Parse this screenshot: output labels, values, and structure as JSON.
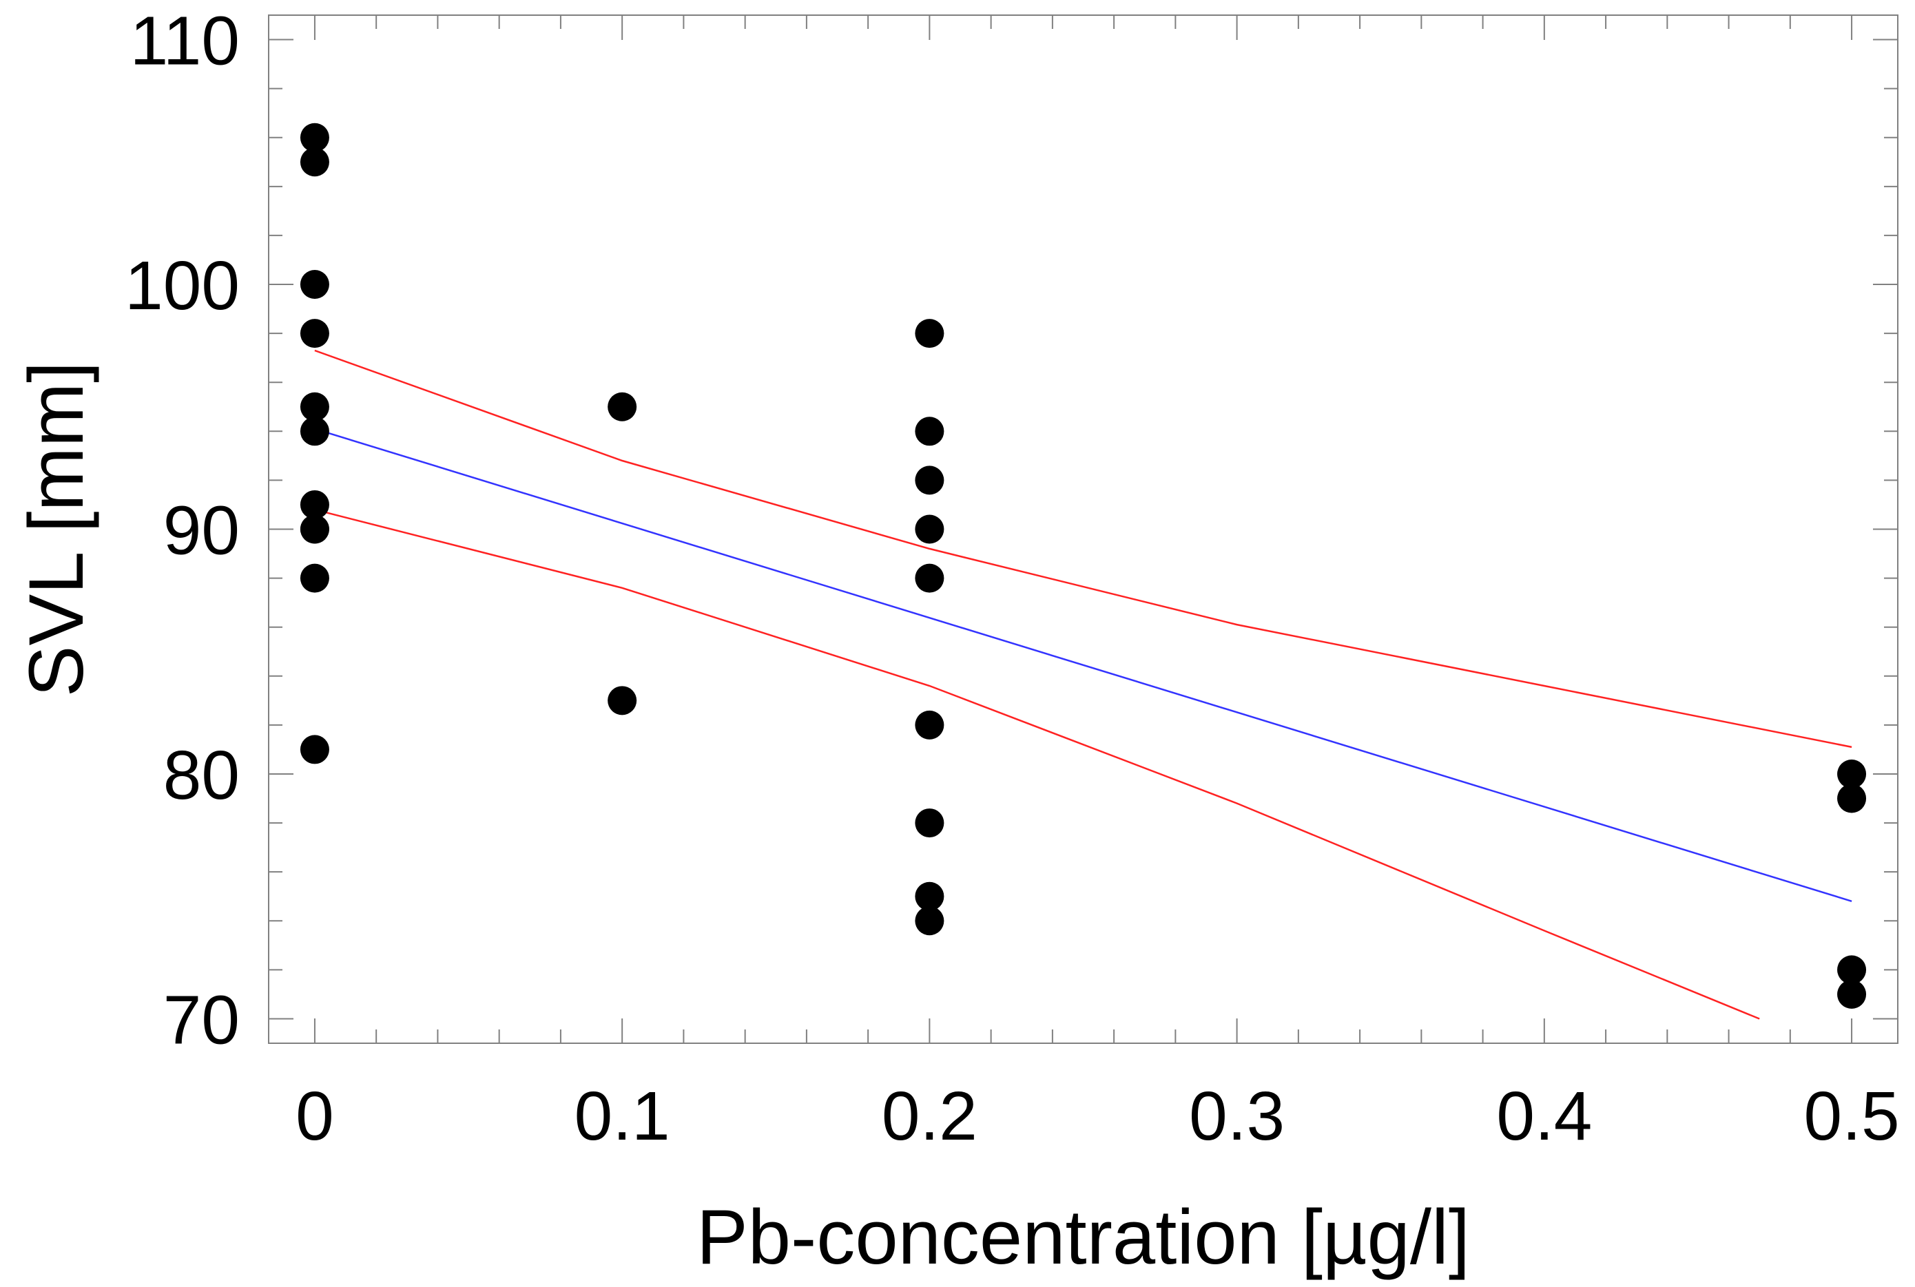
{
  "chart_data": {
    "type": "scatter",
    "title": "",
    "xlabel": "Pb-concentration [µg/l]",
    "ylabel": "SVL [mm]",
    "xlim": [
      -0.015,
      0.515
    ],
    "ylim": [
      69,
      111
    ],
    "xticks": [
      0,
      0.1,
      0.2,
      0.3,
      0.4,
      0.5
    ],
    "xtick_labels": [
      "0",
      "0.1",
      "0.2",
      "0.3",
      "0.4",
      "0.5"
    ],
    "yticks": [
      70,
      80,
      90,
      100,
      110
    ],
    "ytick_labels": [
      "70",
      "80",
      "90",
      "100",
      "110"
    ],
    "grid": false,
    "colors": {
      "points": "#000000",
      "regression": "#3333ff",
      "confidence": "#ff2222",
      "frame": "#808080"
    },
    "series": [
      {
        "name": "observations",
        "kind": "scatter",
        "x": [
          0,
          0,
          0,
          0,
          0,
          0,
          0,
          0,
          0,
          0,
          0,
          0.1,
          0.1,
          0.2,
          0.2,
          0.2,
          0.2,
          0.2,
          0.2,
          0.2,
          0.2,
          0.2,
          0.5,
          0.5,
          0.5,
          0.5
        ],
        "y": [
          106,
          105,
          100,
          98,
          95,
          94,
          91,
          90,
          88,
          81,
          90,
          95,
          83,
          98,
          94,
          92,
          90,
          88,
          82,
          78,
          75,
          74,
          80,
          79,
          72,
          71
        ]
      },
      {
        "name": "regression",
        "kind": "line",
        "x": [
          0,
          0.5
        ],
        "y": [
          94.1,
          74.8
        ]
      },
      {
        "name": "upper confidence limit",
        "kind": "line",
        "x": [
          0,
          0.1,
          0.2,
          0.3,
          0.4,
          0.5
        ],
        "y": [
          97.3,
          92.8,
          89.2,
          86.1,
          83.6,
          81.1
        ]
      },
      {
        "name": "lower confidence limit",
        "kind": "line",
        "x": [
          0,
          0.1,
          0.2,
          0.3,
          0.4,
          0.47
        ],
        "y": [
          90.8,
          87.6,
          83.6,
          78.8,
          73.6,
          70.0
        ]
      }
    ]
  }
}
